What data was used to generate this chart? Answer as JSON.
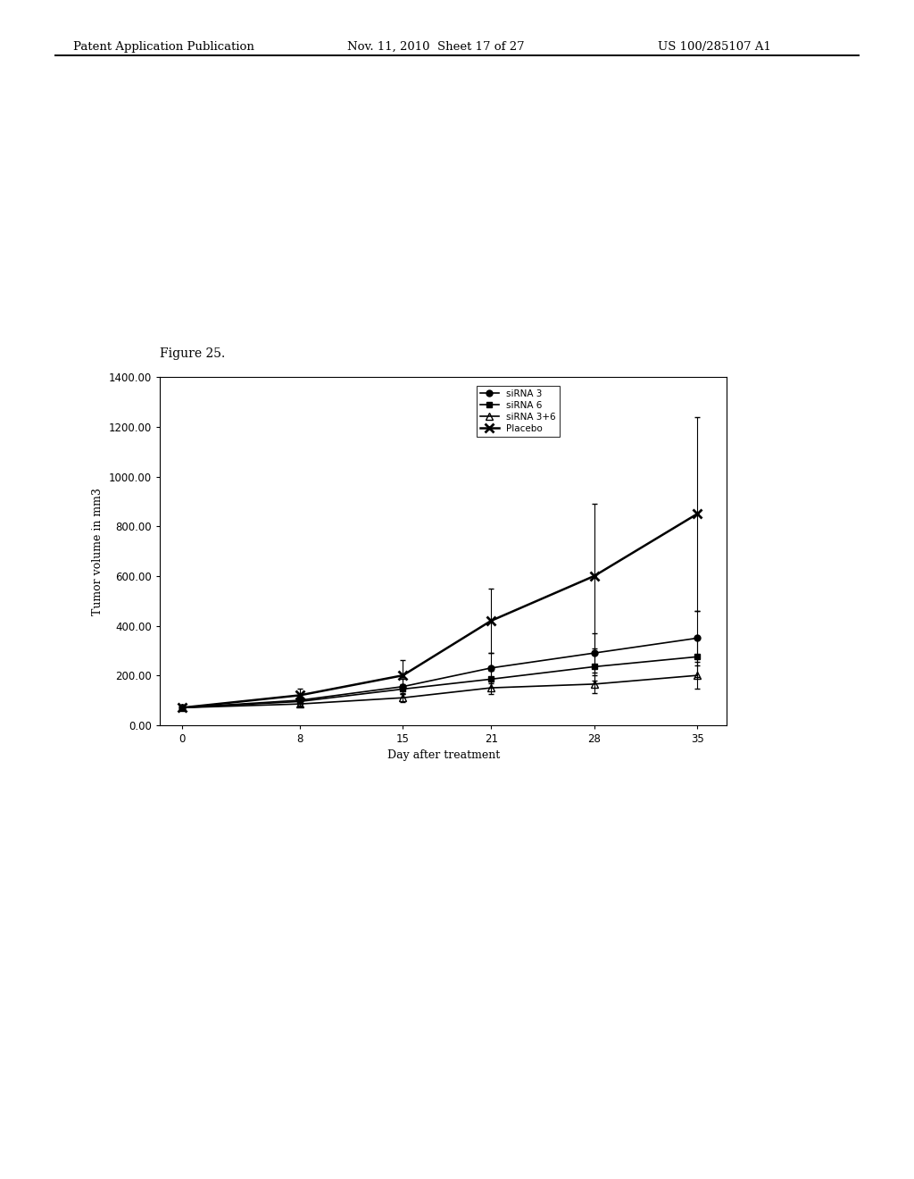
{
  "title": "Figure 25.",
  "xlabel": "Day after treatment",
  "ylabel": "Tumor volume in mm3",
  "x": [
    0,
    8,
    15,
    21,
    28,
    35
  ],
  "series": {
    "siRNA 3": {
      "y": [
        70,
        100,
        155,
        230,
        290,
        350
      ],
      "yerr": [
        10,
        20,
        30,
        60,
        80,
        110
      ],
      "marker": "o",
      "markersize": 6,
      "linestyle": "-",
      "color": "#000000",
      "fillstyle": "full"
    },
    "siRNA 6": {
      "y": [
        70,
        95,
        145,
        185,
        235,
        275
      ],
      "yerr": [
        10,
        15,
        20,
        35,
        55,
        80
      ],
      "marker": "s",
      "markersize": 6,
      "linestyle": "-",
      "color": "#000000",
      "fillstyle": "full"
    },
    "siRNA 3+6": {
      "y": [
        70,
        85,
        110,
        150,
        165,
        200
      ],
      "yerr": [
        10,
        12,
        18,
        25,
        35,
        55
      ],
      "marker": "^",
      "markersize": 6,
      "linestyle": "-",
      "color": "#000000",
      "fillstyle": "none"
    },
    "Placebo": {
      "y": [
        70,
        120,
        200,
        420,
        600,
        850
      ],
      "yerr": [
        10,
        25,
        60,
        130,
        290,
        390
      ],
      "marker": "x",
      "markersize": 8,
      "linestyle": "-",
      "color": "#000000",
      "fillstyle": "full"
    }
  },
  "ylim": [
    0,
    1400
  ],
  "yticks": [
    0,
    200,
    400,
    600,
    800,
    1000,
    1200,
    1400
  ],
  "ytick_labels": [
    "0.00",
    "200.00",
    "400.00",
    "600.00",
    "800.00",
    "1000.00",
    "1200.00",
    "1400.00"
  ],
  "xticks": [
    0,
    8,
    15,
    21,
    28,
    35
  ],
  "legend_order": [
    "siRNA 3",
    "siRNA 6",
    "siRNA 3+6",
    "Placebo"
  ],
  "header_left": "Patent Application Publication",
  "header_center": "Nov. 11, 2010  Sheet 17 of 27",
  "header_right": "US 100/285107 A1",
  "fig_width": 10.24,
  "fig_height": 13.2,
  "background_color": "#ffffff",
  "plot_bg_color": "#ffffff",
  "text_color": "#000000"
}
